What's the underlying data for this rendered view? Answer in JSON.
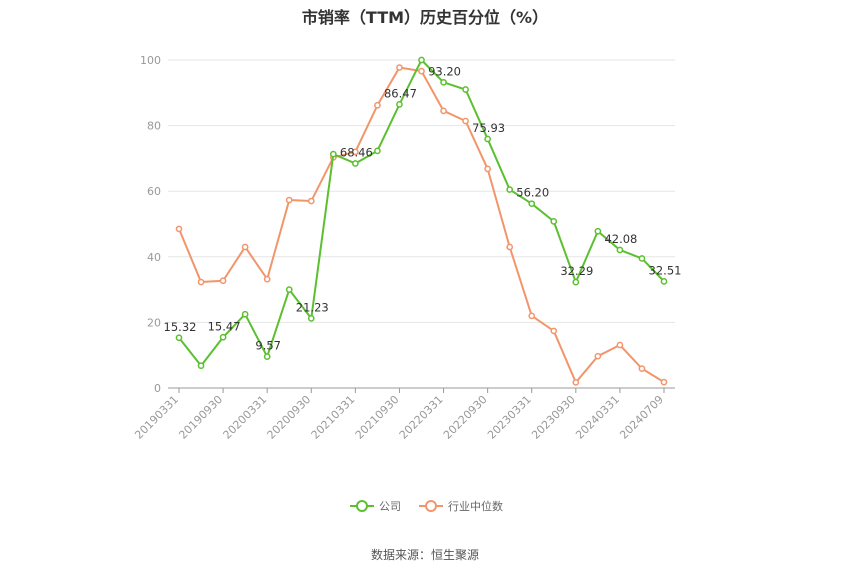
{
  "source": "数据来源：恒生聚源",
  "chart_data": {
    "type": "line",
    "title": "市销率（TTM）历史百分位（%）",
    "xlabel": "",
    "ylabel": "",
    "ylim": [
      0,
      100
    ],
    "yticks": [
      0,
      20,
      40,
      60,
      80,
      100
    ],
    "grid": true,
    "legend_position": "bottom",
    "x": [
      "20190331",
      "20190630",
      "20190930",
      "20191231",
      "20200331",
      "20200630",
      "20200930",
      "20201231",
      "20210331",
      "20210630",
      "20210930",
      "20211231",
      "20220331",
      "20220630",
      "20220930",
      "20221231",
      "20230331",
      "20230630",
      "20230930",
      "20231231",
      "20240331",
      "20240630",
      "20240709"
    ],
    "xtick_labels": [
      "20190331",
      "20190930",
      "20200331",
      "20200930",
      "20210331",
      "20210930",
      "20220331",
      "20220930",
      "20230331",
      "20230930",
      "20240331",
      "20240709"
    ],
    "series": [
      {
        "name": "公司",
        "color": "#5bc02f",
        "values": [
          15.32,
          6.8,
          15.47,
          22.5,
          9.57,
          30.0,
          21.23,
          71.3,
          68.46,
          72.3,
          86.47,
          100.0,
          93.2,
          91.0,
          75.93,
          60.5,
          56.2,
          50.8,
          32.29,
          47.8,
          42.08,
          39.5,
          32.51
        ],
        "labels": [
          "15.32",
          "",
          "15.47",
          "",
          "9.57",
          "",
          "21.23",
          "",
          "68.46",
          "",
          "86.47",
          "",
          "93.20",
          "",
          "75.93",
          "",
          "56.20",
          "",
          "32.29",
          "",
          "42.08",
          "",
          "32.51"
        ]
      },
      {
        "name": "行业中位数",
        "color": "#f2956b",
        "values": [
          48.5,
          32.3,
          32.7,
          43.0,
          33.2,
          57.3,
          57.0,
          70.3,
          72.0,
          86.2,
          97.7,
          96.6,
          84.5,
          81.4,
          66.8,
          43.0,
          22.0,
          17.4,
          1.7,
          9.7,
          13.1,
          5.9,
          1.8
        ]
      }
    ]
  }
}
